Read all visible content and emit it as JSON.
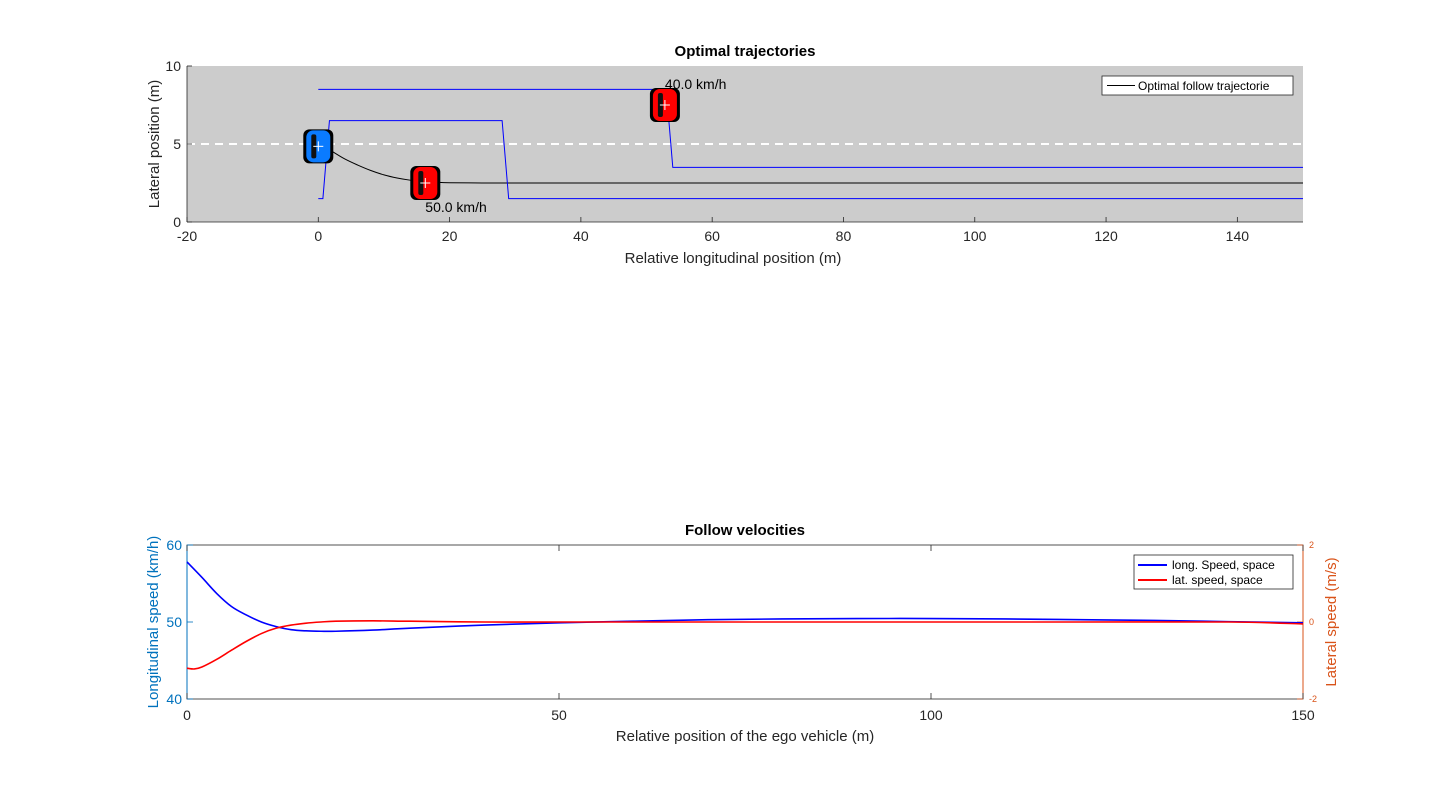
{
  "chart_data": [
    {
      "type": "line",
      "title": "Optimal trajectories",
      "xlabel": "Relative longitudinal position (m)",
      "ylabel": "Lateral position (m)",
      "xlim": [
        -20,
        150
      ],
      "ylim": [
        0,
        10
      ],
      "xticks": [
        "-20",
        "0",
        "20",
        "40",
        "60",
        "80",
        "100",
        "120",
        "140"
      ],
      "yticks": [
        "0",
        "5",
        "10"
      ],
      "road_background": "#cccccc",
      "lane_divider": {
        "y": 5,
        "style": "dashed",
        "color": "#ffffff"
      },
      "legend": {
        "placement": "top-right",
        "entries": [
          "Optimal follow trajectorie"
        ]
      },
      "series": [
        {
          "name": "Optimal follow trajectorie",
          "color": "#000000",
          "x": [
            0,
            2,
            4,
            6,
            8,
            10,
            12,
            14,
            16,
            18,
            20,
            25,
            30,
            40,
            60,
            100,
            150
          ],
          "y": [
            5.0,
            4.55,
            4.05,
            3.65,
            3.3,
            3.02,
            2.82,
            2.68,
            2.6,
            2.55,
            2.52,
            2.5,
            2.5,
            2.5,
            2.5,
            2.5,
            2.5
          ]
        },
        {
          "color": "#0000ff",
          "x": [
            0,
            0.7,
            1.7,
            28,
            29,
            150
          ],
          "y": [
            1.5,
            1.5,
            6.5,
            6.5,
            1.5,
            1.5
          ]
        },
        {
          "color": "#0000ff",
          "x": [
            0,
            53,
            54,
            150
          ],
          "y": [
            8.5,
            8.5,
            3.5,
            3.5
          ]
        }
      ],
      "vehicles": [
        {
          "role": "ego",
          "color": "#0a7bff",
          "x": 0,
          "y": 4.85,
          "label": ""
        },
        {
          "role": "other",
          "color": "#ff0000",
          "x": 16.3,
          "y": 2.5,
          "label": "50.0 km/h"
        },
        {
          "role": "other",
          "color": "#ff0000",
          "x": 52.8,
          "y": 7.5,
          "label": "40.0 km/h"
        }
      ]
    },
    {
      "type": "line",
      "title": "Follow velocities",
      "xlabel": "Relative position of the ego vehicle (m)",
      "ylabel": "Longitudinal speed (km/h)",
      "ylabel_right": "Lateral speed (m/s)",
      "xlim": [
        0,
        150
      ],
      "ylim": [
        40,
        60
      ],
      "ylim_right": [
        -2,
        2
      ],
      "xticks": [
        "0",
        "50",
        "100",
        "150"
      ],
      "yticks": [
        "40",
        "50",
        "60"
      ],
      "yticks_right": [
        "-2",
        "0",
        "2"
      ],
      "left_axis_color": "#0072bd",
      "right_axis_color": "#d95319",
      "legend": {
        "placement": "top-right",
        "entries": [
          "long. Speed, space",
          "lat. speed, space"
        ]
      },
      "series": [
        {
          "name": "long. Speed, space",
          "axis": "left",
          "color": "#0000ff",
          "x": [
            0,
            2,
            4,
            6,
            8,
            10,
            12,
            14,
            16,
            18,
            20,
            25,
            30,
            40,
            50,
            60,
            70,
            80,
            90,
            100,
            110,
            120,
            130,
            140,
            150
          ],
          "y": [
            57.8,
            55.8,
            53.7,
            52.0,
            50.9,
            50.0,
            49.4,
            49.0,
            48.85,
            48.8,
            48.8,
            48.95,
            49.2,
            49.6,
            49.9,
            50.1,
            50.3,
            50.4,
            50.45,
            50.45,
            50.4,
            50.3,
            50.2,
            50.05,
            49.9
          ]
        },
        {
          "name": "lat. speed, space",
          "axis": "right",
          "color": "#ff0000",
          "x": [
            0,
            1,
            2,
            4,
            6,
            8,
            10,
            12,
            14,
            16,
            18,
            20,
            25,
            30,
            40,
            50,
            60,
            80,
            100,
            120,
            140,
            150
          ],
          "y": [
            -1.2,
            -1.22,
            -1.17,
            -0.97,
            -0.73,
            -0.5,
            -0.3,
            -0.16,
            -0.08,
            -0.03,
            0.0,
            0.02,
            0.03,
            0.02,
            0.0,
            0.0,
            0.0,
            0.0,
            0.0,
            0.0,
            0.0,
            -0.05
          ]
        }
      ]
    }
  ]
}
